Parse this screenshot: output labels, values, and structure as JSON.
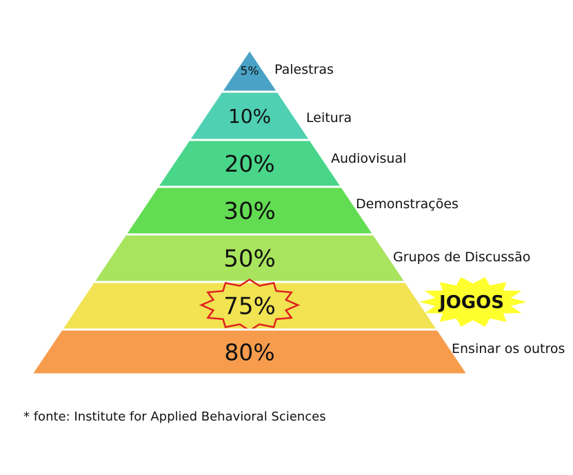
{
  "pyramid": {
    "levels": [
      {
        "percent": "5%",
        "label": "Palestras",
        "color": "#4aa3c7"
      },
      {
        "percent": "10%",
        "label": "Leitura",
        "color": "#4fd0b2"
      },
      {
        "percent": "20%",
        "label": "Audiovisual",
        "color": "#49d68a"
      },
      {
        "percent": "30%",
        "label": "Demonstrações",
        "color": "#62dc52"
      },
      {
        "percent": "50%",
        "label": "Grupos de Discussão",
        "color": "#a8e45d"
      },
      {
        "percent": "75%",
        "label": "",
        "color": "#f1e352",
        "highlight_color": "#e02020"
      },
      {
        "percent": "80%",
        "label": "Ensinar os outros",
        "color": "#f79c4c"
      }
    ]
  },
  "callout": {
    "text": "JOGOS",
    "color": "#ffff2e"
  },
  "footnote": "* fonte: Institute for Applied Behavioral Sciences"
}
